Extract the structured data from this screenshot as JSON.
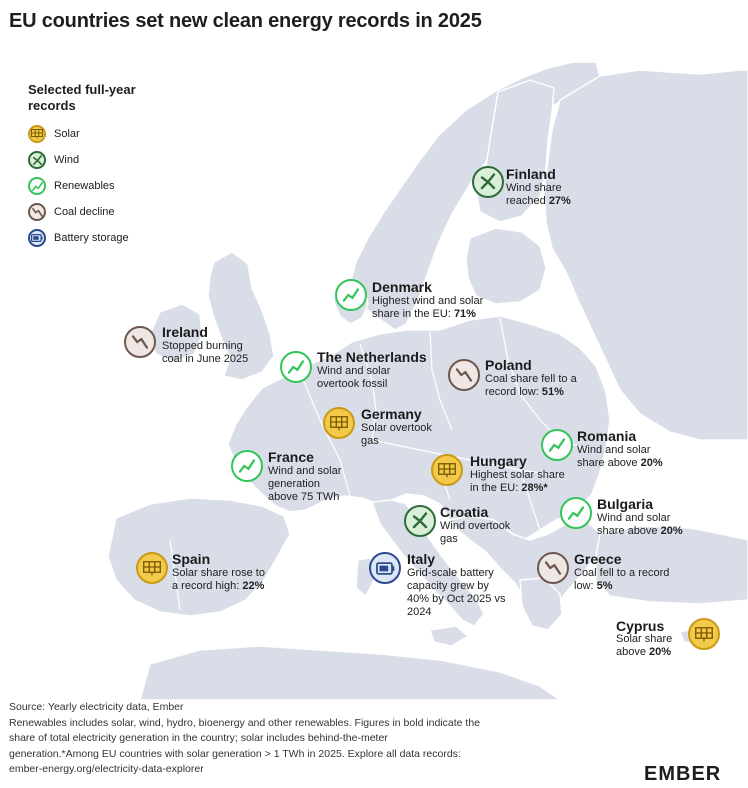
{
  "title": "EU countries set new clean energy records in 2025",
  "legend": {
    "title_line1": "Selected full-year",
    "title_line2": "records",
    "items": [
      {
        "key": "solar",
        "label": "Solar",
        "icon": "solar-panel-icon"
      },
      {
        "key": "wind",
        "label": "Wind",
        "icon": "wind-turbine-icon"
      },
      {
        "key": "renew",
        "label": "Renewables",
        "icon": "trend-up-icon"
      },
      {
        "key": "coal",
        "label": "Coal decline",
        "icon": "trend-down-icon"
      },
      {
        "key": "battery",
        "label": "Battery storage",
        "icon": "battery-icon"
      }
    ]
  },
  "colors": {
    "land": "#d8dde7",
    "sea": "#ffffff",
    "solar": "#f3c94a",
    "wind": "#2e6b36",
    "renewables": "#33c45a",
    "coal": "#6e5650",
    "battery": "#2b4b8c"
  },
  "countries": {
    "finland": {
      "name": "Finland",
      "type": "wind",
      "lines": [
        "Wind share",
        "reached ",
        "27%"
      ]
    },
    "denmark": {
      "name": "Denmark",
      "type": "renew",
      "lines": [
        "Highest wind and solar",
        "share in the EU: ",
        "71%"
      ]
    },
    "ireland": {
      "name": "Ireland",
      "type": "coal",
      "lines": [
        "Stopped burning",
        "coal in June 2025"
      ]
    },
    "netherlands": {
      "name": "The Netherlands",
      "type": "renew",
      "lines": [
        "Wind and solar",
        "overtook fossil"
      ]
    },
    "poland": {
      "name": "Poland",
      "type": "coal",
      "lines": [
        "Coal share fell to a",
        "record low: ",
        "51%"
      ]
    },
    "germany": {
      "name": "Germany",
      "type": "solar",
      "lines": [
        "Solar overtook",
        "gas"
      ]
    },
    "romania": {
      "name": "Romania",
      "type": "renew",
      "lines": [
        "Wind and solar",
        "share above ",
        "20%"
      ]
    },
    "france": {
      "name": "France",
      "type": "renew",
      "lines": [
        "Wind and solar",
        "generation",
        "above 75 TWh"
      ]
    },
    "hungary": {
      "name": "Hungary",
      "type": "solar",
      "lines": [
        "Highest solar share",
        "in the EU: ",
        "28%*"
      ]
    },
    "bulgaria": {
      "name": "Bulgaria",
      "type": "renew",
      "lines": [
        "Wind and solar",
        "share above ",
        "20%"
      ]
    },
    "croatia": {
      "name": "Croatia",
      "type": "wind",
      "lines": [
        "Wind overtook",
        "gas"
      ]
    },
    "spain": {
      "name": "Spain",
      "type": "solar",
      "lines": [
        "Solar share rose to",
        "a record high: ",
        "22%"
      ]
    },
    "italy": {
      "name": "Italy",
      "type": "battery",
      "lines": [
        "Grid-scale battery",
        "capacity grew by",
        "40% by Oct 2025 vs",
        "2024"
      ]
    },
    "greece": {
      "name": "Greece",
      "type": "coal",
      "lines": [
        "Coal fell to a record",
        "low: ",
        "5%"
      ]
    },
    "cyprus": {
      "name": "Cyprus",
      "type": "solar",
      "lines": [
        "Solar share",
        "above ",
        "20%"
      ]
    }
  },
  "footer": {
    "line1": "Source: Yearly electricity data, Ember",
    "line2": "Renewables includes solar, wind, hydro, bioenergy and other renewables. Figures in bold indicate the",
    "line3": "share of total electricity generation in the country; solar includes behind-the-meter",
    "line4": "generation.*Among EU countries with solar generation > 1 TWh in 2025. Explore all data records:",
    "line5": "ember-energy.org/electricity-data-explorer"
  },
  "logo": {
    "text": "EMBER"
  }
}
